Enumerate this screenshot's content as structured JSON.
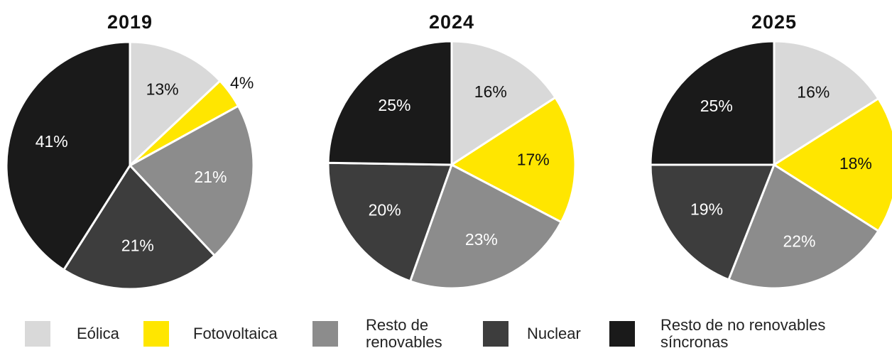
{
  "chart_data": [
    {
      "type": "pie",
      "title": "2019",
      "categories": [
        "Eólica",
        "Fotovoltaica",
        "Resto de renovables",
        "Nuclear",
        "Resto de no renovables síncronas"
      ],
      "colors": [
        "#d9d9d9",
        "#ffe600",
        "#8c8c8c",
        "#3d3d3d",
        "#1a1a1a"
      ],
      "values": [
        13,
        4,
        21,
        21,
        41
      ],
      "value_labels": [
        "13%",
        "4%",
        "21%",
        "21%",
        "41%"
      ]
    },
    {
      "type": "pie",
      "title": "2024",
      "categories": [
        "Eólica",
        "Fotovoltaica",
        "Resto de renovables",
        "Nuclear",
        "Resto de no renovables síncronas"
      ],
      "colors": [
        "#d9d9d9",
        "#ffe600",
        "#8c8c8c",
        "#3d3d3d",
        "#1a1a1a"
      ],
      "values": [
        16,
        17,
        23,
        20,
        25
      ],
      "value_labels": [
        "16%",
        "17%",
        "23%",
        "20%",
        "25%"
      ]
    },
    {
      "type": "pie",
      "title": "2025",
      "categories": [
        "Eólica",
        "Fotovoltaica",
        "Resto de renovables",
        "Nuclear",
        "Resto de no renovables síncronas"
      ],
      "colors": [
        "#d9d9d9",
        "#ffe600",
        "#8c8c8c",
        "#3d3d3d",
        "#1a1a1a"
      ],
      "values": [
        16,
        18,
        22,
        19,
        25
      ],
      "value_labels": [
        "16%",
        "18%",
        "22%",
        "19%",
        "25%"
      ]
    }
  ]
}
